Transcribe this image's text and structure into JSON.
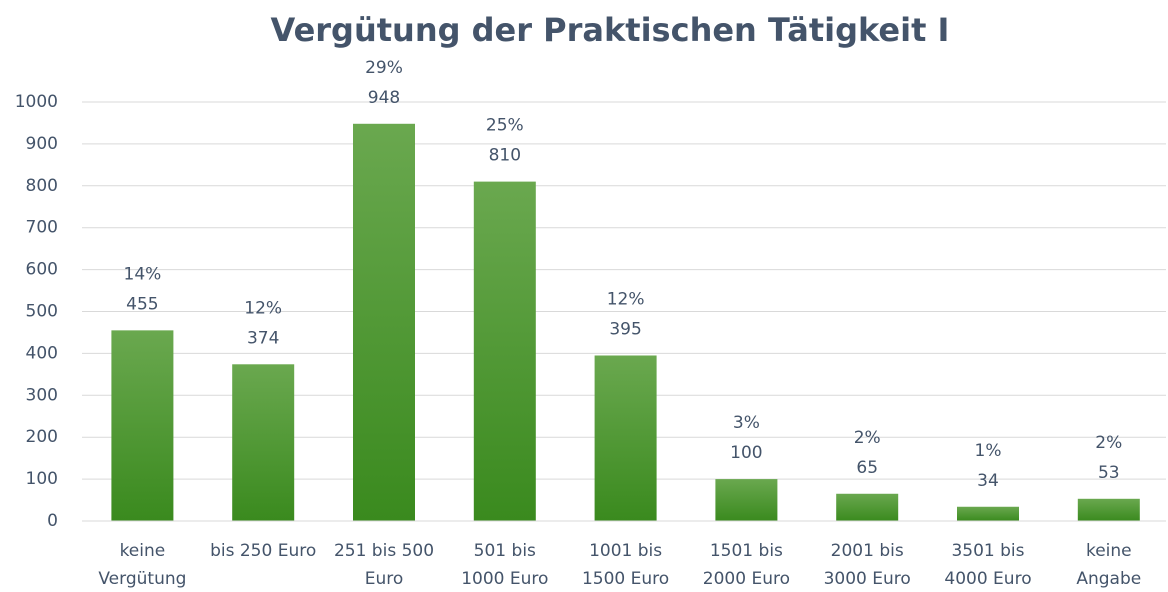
{
  "chart_data": {
    "type": "bar",
    "title": "Vergütung der Praktischen Tätigkeit I",
    "categories": [
      "keine\nVergütung",
      "bis 250 Euro",
      "251 bis 500\nEuro",
      "501 bis\n1000 Euro",
      "1001 bis\n1500 Euro",
      "1501 bis\n2000 Euro",
      "2001 bis\n3000 Euro",
      "3501 bis\n4000 Euro",
      "keine\nAngabe"
    ],
    "values": [
      455,
      374,
      948,
      810,
      395,
      100,
      65,
      34,
      53
    ],
    "percent_labels": [
      "14%",
      "12%",
      "29%",
      "25%",
      "12%",
      "3%",
      "2%",
      "1%",
      "2%"
    ],
    "color": "#4a9a2c",
    "ylim": [
      0,
      1000
    ],
    "yticks": [
      0,
      100,
      200,
      300,
      400,
      500,
      600,
      700,
      800,
      900,
      1000
    ],
    "grid": true
  }
}
